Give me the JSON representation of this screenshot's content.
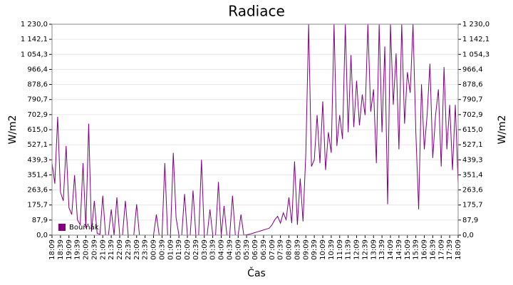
{
  "chart_data": {
    "type": "line",
    "title": "Radiace",
    "x_label": "Čas",
    "y_label": "W/m2",
    "y2_label": "W/m2",
    "categories": [
      "18:09",
      null,
      null,
      "18:39",
      null,
      null,
      "19:09",
      null,
      null,
      "19:39",
      null,
      null,
      "20:09",
      null,
      null,
      "20:39",
      null,
      null,
      "21:09",
      null,
      null,
      "21:39",
      null,
      null,
      "22:09",
      null,
      null,
      "22:39",
      null,
      null,
      "23:09",
      null,
      null,
      "23:39",
      null,
      null,
      "00:09",
      null,
      null,
      "00:39",
      null,
      null,
      "01:09",
      null,
      null,
      "01:39",
      null,
      null,
      "02:09",
      null,
      null,
      "02:39",
      null,
      null,
      "03:09",
      null,
      null,
      "03:39",
      null,
      null,
      "04:09",
      null,
      null,
      "04:39",
      null,
      null,
      "05:09",
      null,
      null,
      "05:39",
      null,
      null,
      "06:09",
      null,
      null,
      "06:39",
      null,
      null,
      "07:09",
      null,
      null,
      "07:39",
      null,
      null,
      "08:09",
      null,
      null,
      "08:39",
      null,
      null,
      "09:09",
      null,
      null,
      "09:39",
      null,
      null,
      "10:09",
      null,
      null,
      "10:39",
      null,
      null,
      "11:09",
      null,
      null,
      "11:39",
      null,
      null,
      "12:09",
      null,
      null,
      "12:39",
      null,
      null,
      "13:09",
      null,
      null,
      "13:39",
      null,
      null,
      "14:09",
      null,
      null,
      "14:39",
      null,
      null,
      "15:09",
      null,
      null,
      "15:39",
      null,
      null,
      "16:09",
      null,
      null,
      "16:39",
      null,
      null,
      "17:09",
      null,
      null,
      "17:39",
      null,
      null,
      "18:09"
    ],
    "series": [
      {
        "name": "Bouřňák",
        "color": "#800080",
        "values": [
          420,
          300,
          690,
          250,
          200,
          520,
          160,
          120,
          350,
          90,
          60,
          420,
          40,
          650,
          20,
          200,
          10,
          5,
          230,
          0,
          0,
          150,
          0,
          220,
          0,
          0,
          200,
          0,
          0,
          0,
          180,
          0,
          0,
          0,
          0,
          0,
          0,
          120,
          0,
          0,
          420,
          0,
          0,
          480,
          100,
          0,
          0,
          240,
          0,
          0,
          260,
          0,
          0,
          440,
          0,
          0,
          150,
          0,
          0,
          310,
          0,
          170,
          0,
          0,
          230,
          0,
          0,
          120,
          0,
          2,
          5,
          10,
          15,
          20,
          25,
          30,
          35,
          40,
          60,
          90,
          110,
          70,
          130,
          90,
          220,
          70,
          430,
          60,
          330,
          80,
          480,
          1230,
          400,
          440,
          700,
          420,
          780,
          380,
          600,
          480,
          1230,
          520,
          700,
          560,
          1230,
          600,
          1050,
          630,
          900,
          640,
          820,
          700,
          1230,
          720,
          850,
          420,
          1230,
          600,
          1100,
          180,
          1230,
          760,
          1060,
          500,
          1230,
          650,
          950,
          830,
          1230,
          600,
          150,
          880,
          500,
          700,
          1000,
          450,
          700,
          850,
          400,
          980,
          500,
          760,
          380,
          760,
          300
        ]
      }
    ],
    "ylim": [
      0,
      1230
    ],
    "yticks": [
      {
        "value": 0,
        "label": "0,0"
      },
      {
        "value": 87.9,
        "label": "87,9"
      },
      {
        "value": 175.7,
        "label": "175,7"
      },
      {
        "value": 263.6,
        "label": "263,6"
      },
      {
        "value": 351.4,
        "label": "351,4"
      },
      {
        "value": 439.3,
        "label": "439,3"
      },
      {
        "value": 527.1,
        "label": "527,1"
      },
      {
        "value": 615,
        "label": "615,0"
      },
      {
        "value": 702.9,
        "label": "702,9"
      },
      {
        "value": 790.7,
        "label": "790,7"
      },
      {
        "value": 878.6,
        "label": "878,6"
      },
      {
        "value": 966.4,
        "label": "966,4"
      },
      {
        "value": 1054.3,
        "label": "1 054,3"
      },
      {
        "value": 1142.1,
        "label": "1 142,1"
      },
      {
        "value": 1230,
        "label": "1 230,0"
      }
    ],
    "y2lim": [
      0,
      1230
    ],
    "y2ticks": [
      {
        "value": 0,
        "label": "0,0"
      },
      {
        "value": 87.9,
        "label": "87,9"
      },
      {
        "value": 175.7,
        "label": "175,7"
      },
      {
        "value": 263.6,
        "label": "263,6"
      },
      {
        "value": 351.4,
        "label": "351,4"
      },
      {
        "value": 439.3,
        "label": "439,3"
      },
      {
        "value": 527.1,
        "label": "527,1"
      },
      {
        "value": 615,
        "label": "615,0"
      },
      {
        "value": 702.9,
        "label": "702,9"
      },
      {
        "value": 790.7,
        "label": "790,7"
      },
      {
        "value": 878.6,
        "label": "878,6"
      },
      {
        "value": 966.4,
        "label": "966,4"
      },
      {
        "value": 1054.3,
        "label": "1 054,3"
      },
      {
        "value": 1142.1,
        "label": "1 142,1"
      },
      {
        "value": 1230,
        "label": "1 230,0"
      }
    ],
    "grid": true,
    "legend": "bottom-left"
  }
}
